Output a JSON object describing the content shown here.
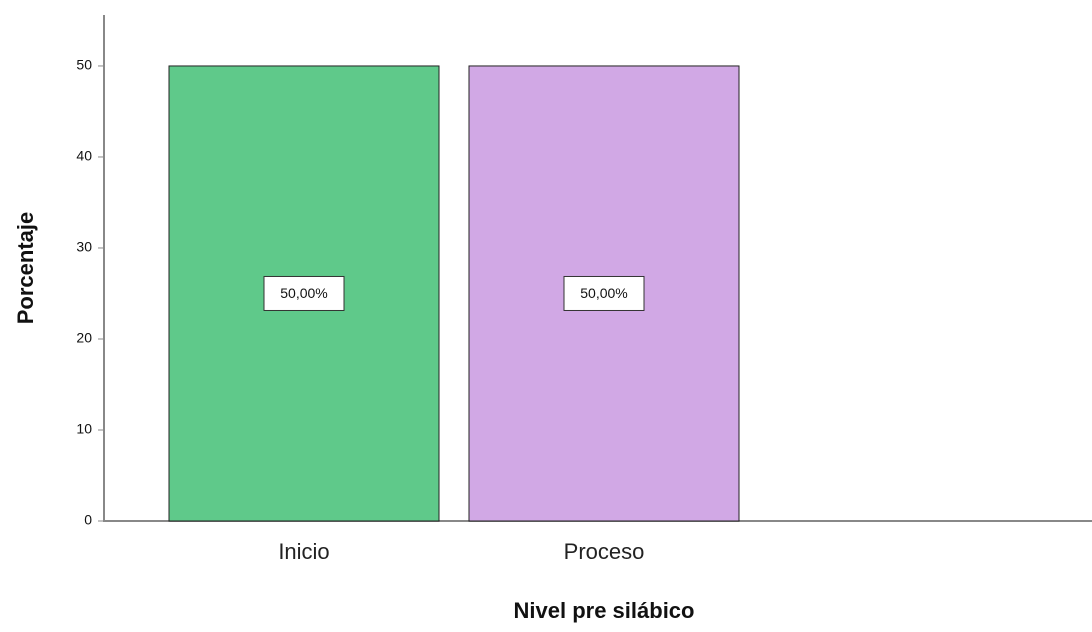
{
  "chart_data": {
    "type": "bar",
    "x_label": "Nivel pre silábico",
    "y_label": "Porcentaje",
    "categories": [
      "Inicio",
      "Proceso"
    ],
    "values": [
      50,
      50
    ],
    "value_labels": [
      "50,00%",
      "50,00%"
    ],
    "colors": [
      "#5fc98a",
      "#d1a8e5"
    ],
    "ylim": [
      0,
      55.6
    ],
    "yticks": [
      0,
      10,
      20,
      30,
      40,
      50
    ],
    "grid": false
  }
}
